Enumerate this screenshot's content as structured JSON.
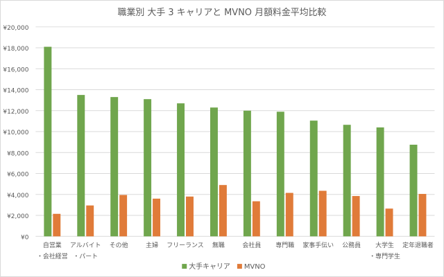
{
  "chart_data": {
    "type": "bar",
    "title": "職業別 大手 3 キャリアと MVNO 月額料金平均比較",
    "xlabel": "",
    "ylabel": "",
    "ylim": [
      0,
      20000
    ],
    "yticks": [
      0,
      2000,
      4000,
      6000,
      8000,
      10000,
      12000,
      14000,
      16000,
      18000,
      20000
    ],
    "ytick_labels": [
      "¥0",
      "¥2,000",
      "¥4,000",
      "¥6,000",
      "¥8,000",
      "¥10,000",
      "¥12,000",
      "¥14,000",
      "¥16,000",
      "¥18,000",
      "¥20,000"
    ],
    "grid": true,
    "legend": "bottom",
    "categories": [
      [
        "自営業",
        "・会社経営"
      ],
      [
        "アルバイト",
        "・パート"
      ],
      [
        "その他"
      ],
      [
        "主婦"
      ],
      [
        "フリーランス"
      ],
      [
        "無職"
      ],
      [
        "会社員"
      ],
      [
        "専門職"
      ],
      [
        "家事手伝い"
      ],
      [
        "公務員"
      ],
      [
        "大学生",
        "・専門学生"
      ],
      [
        "定年退職者"
      ]
    ],
    "series": [
      {
        "name": "大手キャリア",
        "color": "#70a64d",
        "values": [
          18100,
          13500,
          13300,
          13100,
          12700,
          12300,
          12000,
          11900,
          11050,
          10650,
          10400,
          8750
        ]
      },
      {
        "name": "MVNO",
        "color": "#e07b39",
        "values": [
          2150,
          2950,
          3950,
          3600,
          3800,
          4900,
          3350,
          4150,
          4350,
          3850,
          2650,
          4050
        ]
      }
    ]
  }
}
